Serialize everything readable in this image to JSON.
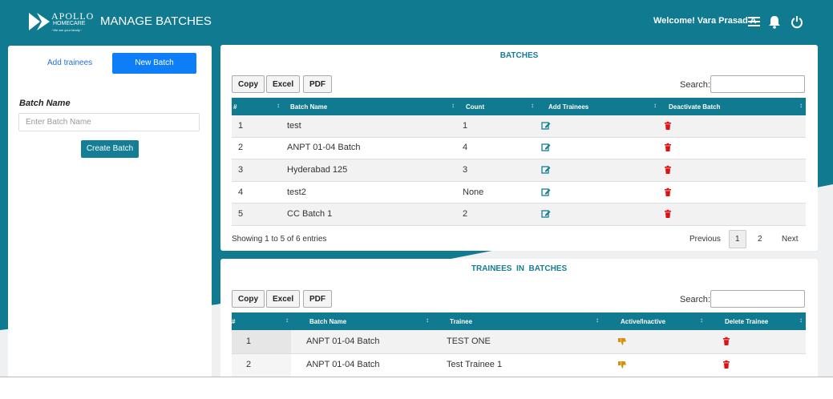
{
  "header": {
    "logo_name": "APOLLO",
    "logo_sub": "HOMECARE",
    "logo_tagline": "~We are your family~",
    "title": "MANAGE BATCHES",
    "welcome": "Welcome! Vara Prasad A"
  },
  "sidebar": {
    "tabs": [
      "Add trainees",
      "New Batch"
    ],
    "field_label": "Batch Name",
    "placeholder": "Enter Batch Name",
    "button": "Create Batch"
  },
  "batches": {
    "title": "BATCHES",
    "tools": [
      "Copy",
      "Excel",
      "PDF"
    ],
    "search_label": "Search:",
    "columns": [
      "#",
      "Batch Name",
      "Count",
      "Add Trainees",
      "Deactivate Batch"
    ],
    "rows": [
      [
        1,
        "test",
        1
      ],
      [
        2,
        "ANPT 01-04 Batch",
        4
      ],
      [
        3,
        "Hyderabad 125",
        3
      ],
      [
        4,
        "test2",
        "None"
      ],
      [
        5,
        "CC Batch 1",
        2
      ]
    ],
    "info": "Showing 1 to 5 of 6 entries",
    "pagination": [
      "Previous",
      1,
      2,
      "Next"
    ]
  },
  "trainees": {
    "title": "TRAINEES  IN  BATCHES",
    "tools": [
      "Copy",
      "Excel",
      "PDF"
    ],
    "search_label": "Search:",
    "columns": [
      "#",
      "Batch Name",
      "Trainee",
      "Active/Inactive",
      "Delete Trainee"
    ],
    "rows": [
      [
        1,
        "ANPT 01-04 Batch",
        "TEST ONE"
      ],
      [
        2,
        "ANPT 01-04 Batch",
        "Test Trainee 1"
      ]
    ]
  }
}
